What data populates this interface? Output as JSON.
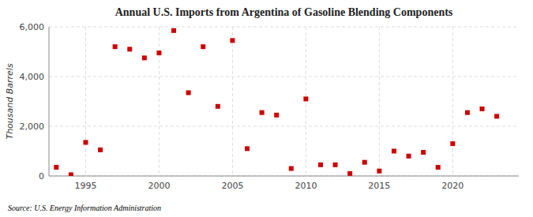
{
  "chart_data": {
    "type": "scatter",
    "title": "Annual U.S. Imports from Argentina of Gasoline Blending Components",
    "y_label": "Thousand Barrels",
    "source": "Source: U.S. Energy Information Administration",
    "x": [
      1993,
      1994,
      1995,
      1996,
      1997,
      1998,
      1999,
      2000,
      2001,
      2002,
      2003,
      2004,
      2005,
      2006,
      2007,
      2008,
      2009,
      2010,
      2011,
      2012,
      2013,
      2014,
      2015,
      2016,
      2017,
      2018,
      2019,
      2020,
      2021,
      2022,
      2023
    ],
    "values": [
      350,
      50,
      1350,
      1050,
      5200,
      5100,
      4750,
      4950,
      5850,
      3350,
      5200,
      2800,
      5450,
      1100,
      2550,
      2450,
      300,
      3100,
      450,
      450,
      100,
      550,
      200,
      1000,
      800,
      950,
      350,
      1300,
      2550,
      2700,
      2400
    ],
    "color": "#cc0000",
    "marker": "square",
    "xlim": [
      1992.5,
      2024.5
    ],
    "xticks": [
      1995,
      2000,
      2005,
      2010,
      2015,
      2020
    ],
    "ylim": [
      0,
      6000
    ],
    "yticks": [
      0,
      {
        "value": 2000,
        "label": "2,000"
      },
      {
        "value": 4000,
        "label": "4,000"
      },
      {
        "value": 6000,
        "label": "6,000"
      }
    ],
    "grid": true
  }
}
